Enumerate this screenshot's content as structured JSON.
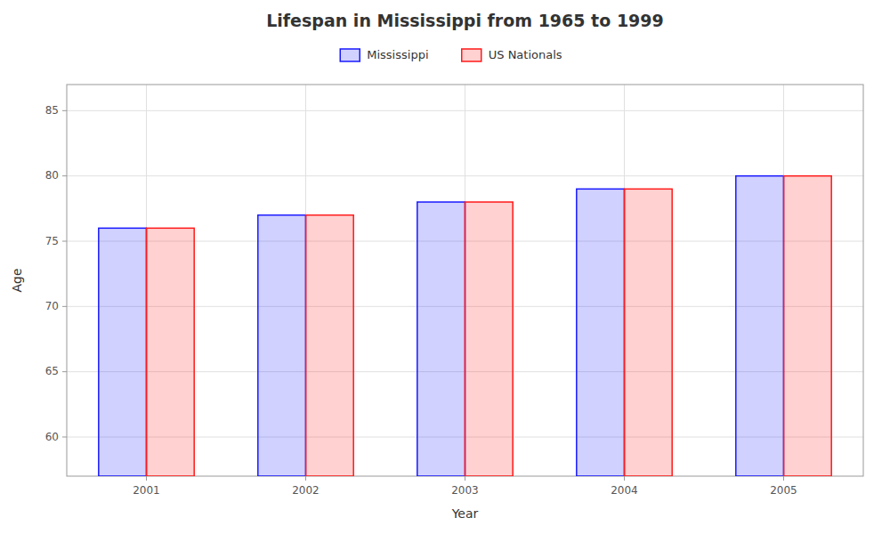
{
  "chart_data": {
    "type": "bar",
    "title": "Lifespan in Mississippi from 1965 to 1999",
    "x_label": "Year",
    "y_label": "Age",
    "categories": [
      "2001",
      "2002",
      "2003",
      "2004",
      "2005"
    ],
    "series": [
      {
        "name": "Mississippi",
        "color": "#1a1aff",
        "values": [
          76,
          77,
          78,
          79,
          80
        ]
      },
      {
        "name": "US Nationals",
        "color": "#ff1a1a",
        "values": [
          76,
          77,
          78,
          79,
          80
        ]
      }
    ],
    "ylim": [
      57,
      87
    ],
    "yticks": [
      60,
      65,
      70,
      75,
      80,
      85
    ],
    "grid": true,
    "legend": "top"
  }
}
